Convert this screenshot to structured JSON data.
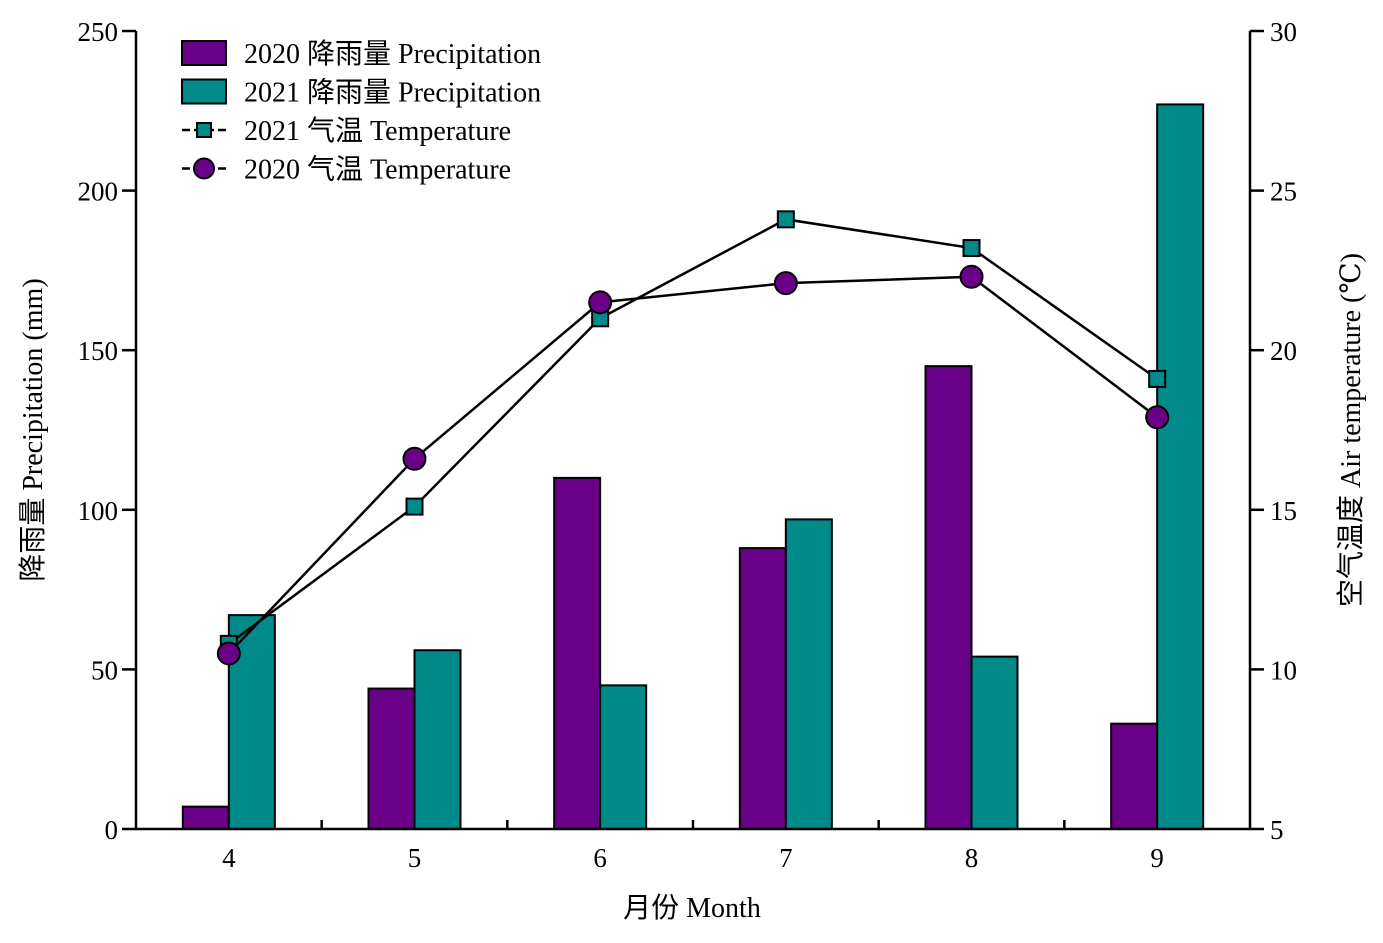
{
  "chart_data": {
    "type": "bar",
    "categories": [
      "4",
      "5",
      "6",
      "7",
      "8",
      "9"
    ],
    "xlabel": "月份 Month",
    "ylabel": "降雨量 Precipitation (mm)",
    "y2label": "空气温度 Air temperature (℃)",
    "ylim": [
      0,
      250
    ],
    "y2lim": [
      5,
      30
    ],
    "yticks": [
      "0",
      "50",
      "100",
      "150",
      "200",
      "250"
    ],
    "y2ticks": [
      "5",
      "10",
      "15",
      "20",
      "25",
      "30"
    ],
    "grid": false,
    "legend_position": "top-left",
    "series": [
      {
        "name": "2020 降雨量 Precipitation",
        "kind": "bar",
        "axis": "left",
        "color": "#6A0087",
        "values": [
          7,
          44,
          110,
          88,
          145,
          33
        ]
      },
      {
        "name": "2021 降雨量 Precipitation",
        "kind": "bar",
        "axis": "left",
        "color": "#008A8A",
        "values": [
          67,
          56,
          45,
          97,
          54,
          227
        ]
      },
      {
        "name": "2021 气温 Temperature",
        "kind": "line",
        "marker": "square",
        "axis": "right",
        "color": "#008A8A",
        "values": [
          10.8,
          15.1,
          21.0,
          24.1,
          23.2,
          19.1
        ]
      },
      {
        "name": "2020 气温 Temperature",
        "kind": "line",
        "marker": "circle",
        "axis": "right",
        "color": "#6A0087",
        "values": [
          10.5,
          16.6,
          21.5,
          22.1,
          22.3,
          17.9
        ]
      }
    ]
  }
}
